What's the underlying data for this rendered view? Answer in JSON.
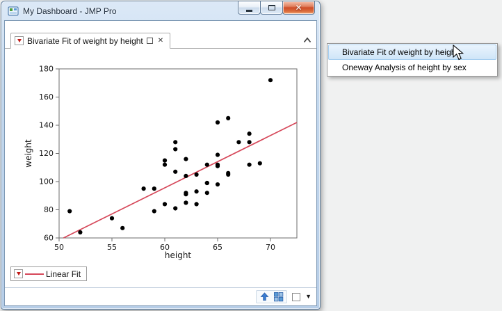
{
  "window": {
    "title": "My Dashboard - JMP Pro"
  },
  "tab": {
    "label": "Bivariate Fit of weight by height"
  },
  "menu": {
    "items": [
      {
        "label": "Bivariate Fit of weight by height",
        "selected": true
      },
      {
        "label": "Oneway Analysis of height by sex",
        "selected": false
      }
    ]
  },
  "legend": {
    "label": "Linear Fit"
  },
  "icons": {
    "tab_close": "✕",
    "window_close": "✕",
    "dropdown_caret": "▼"
  },
  "colors": {
    "fit_line": "#d6485a",
    "selection_bg": "#cfe5f8",
    "titlebar": "#c3d8ee",
    "point": "#000000"
  },
  "chart_data": {
    "type": "scatter",
    "title": "Bivariate Fit of weight by height",
    "xlabel": "height",
    "ylabel": "weight",
    "xlim": [
      50,
      72.5
    ],
    "ylim": [
      60,
      180
    ],
    "x_ticks": [
      50,
      55,
      60,
      65,
      70
    ],
    "y_ticks": [
      60,
      80,
      100,
      120,
      140,
      160,
      180
    ],
    "grid": false,
    "legend_position": "bottom-left",
    "point_color": "#000000",
    "frame_color": "#6b6b6b",
    "points": [
      [
        59,
        95
      ],
      [
        61,
        123
      ],
      [
        55,
        74
      ],
      [
        66,
        145
      ],
      [
        52,
        64
      ],
      [
        60,
        84
      ],
      [
        61,
        128
      ],
      [
        51,
        79
      ],
      [
        60,
        112
      ],
      [
        61,
        107
      ],
      [
        56,
        67
      ],
      [
        65,
        98
      ],
      [
        63,
        105
      ],
      [
        58,
        95
      ],
      [
        59,
        79
      ],
      [
        61,
        81
      ],
      [
        62,
        91
      ],
      [
        65,
        142
      ],
      [
        63,
        84
      ],
      [
        62,
        85
      ],
      [
        63,
        93
      ],
      [
        64,
        99
      ],
      [
        65,
        119
      ],
      [
        64,
        92
      ],
      [
        68,
        112
      ],
      [
        64,
        99
      ],
      [
        69,
        113
      ],
      [
        62,
        92
      ],
      [
        64,
        112
      ],
      [
        67,
        128
      ],
      [
        65,
        111
      ],
      [
        66,
        105
      ],
      [
        62,
        104
      ],
      [
        66,
        106
      ],
      [
        65,
        112
      ],
      [
        60,
        115
      ],
      [
        68,
        128
      ],
      [
        62,
        116
      ],
      [
        68,
        134
      ],
      [
        70,
        172
      ]
    ],
    "fit_line": {
      "name": "Linear Fit",
      "slope": 3.7121,
      "intercept": -127.1454,
      "color": "#d6485a"
    }
  }
}
